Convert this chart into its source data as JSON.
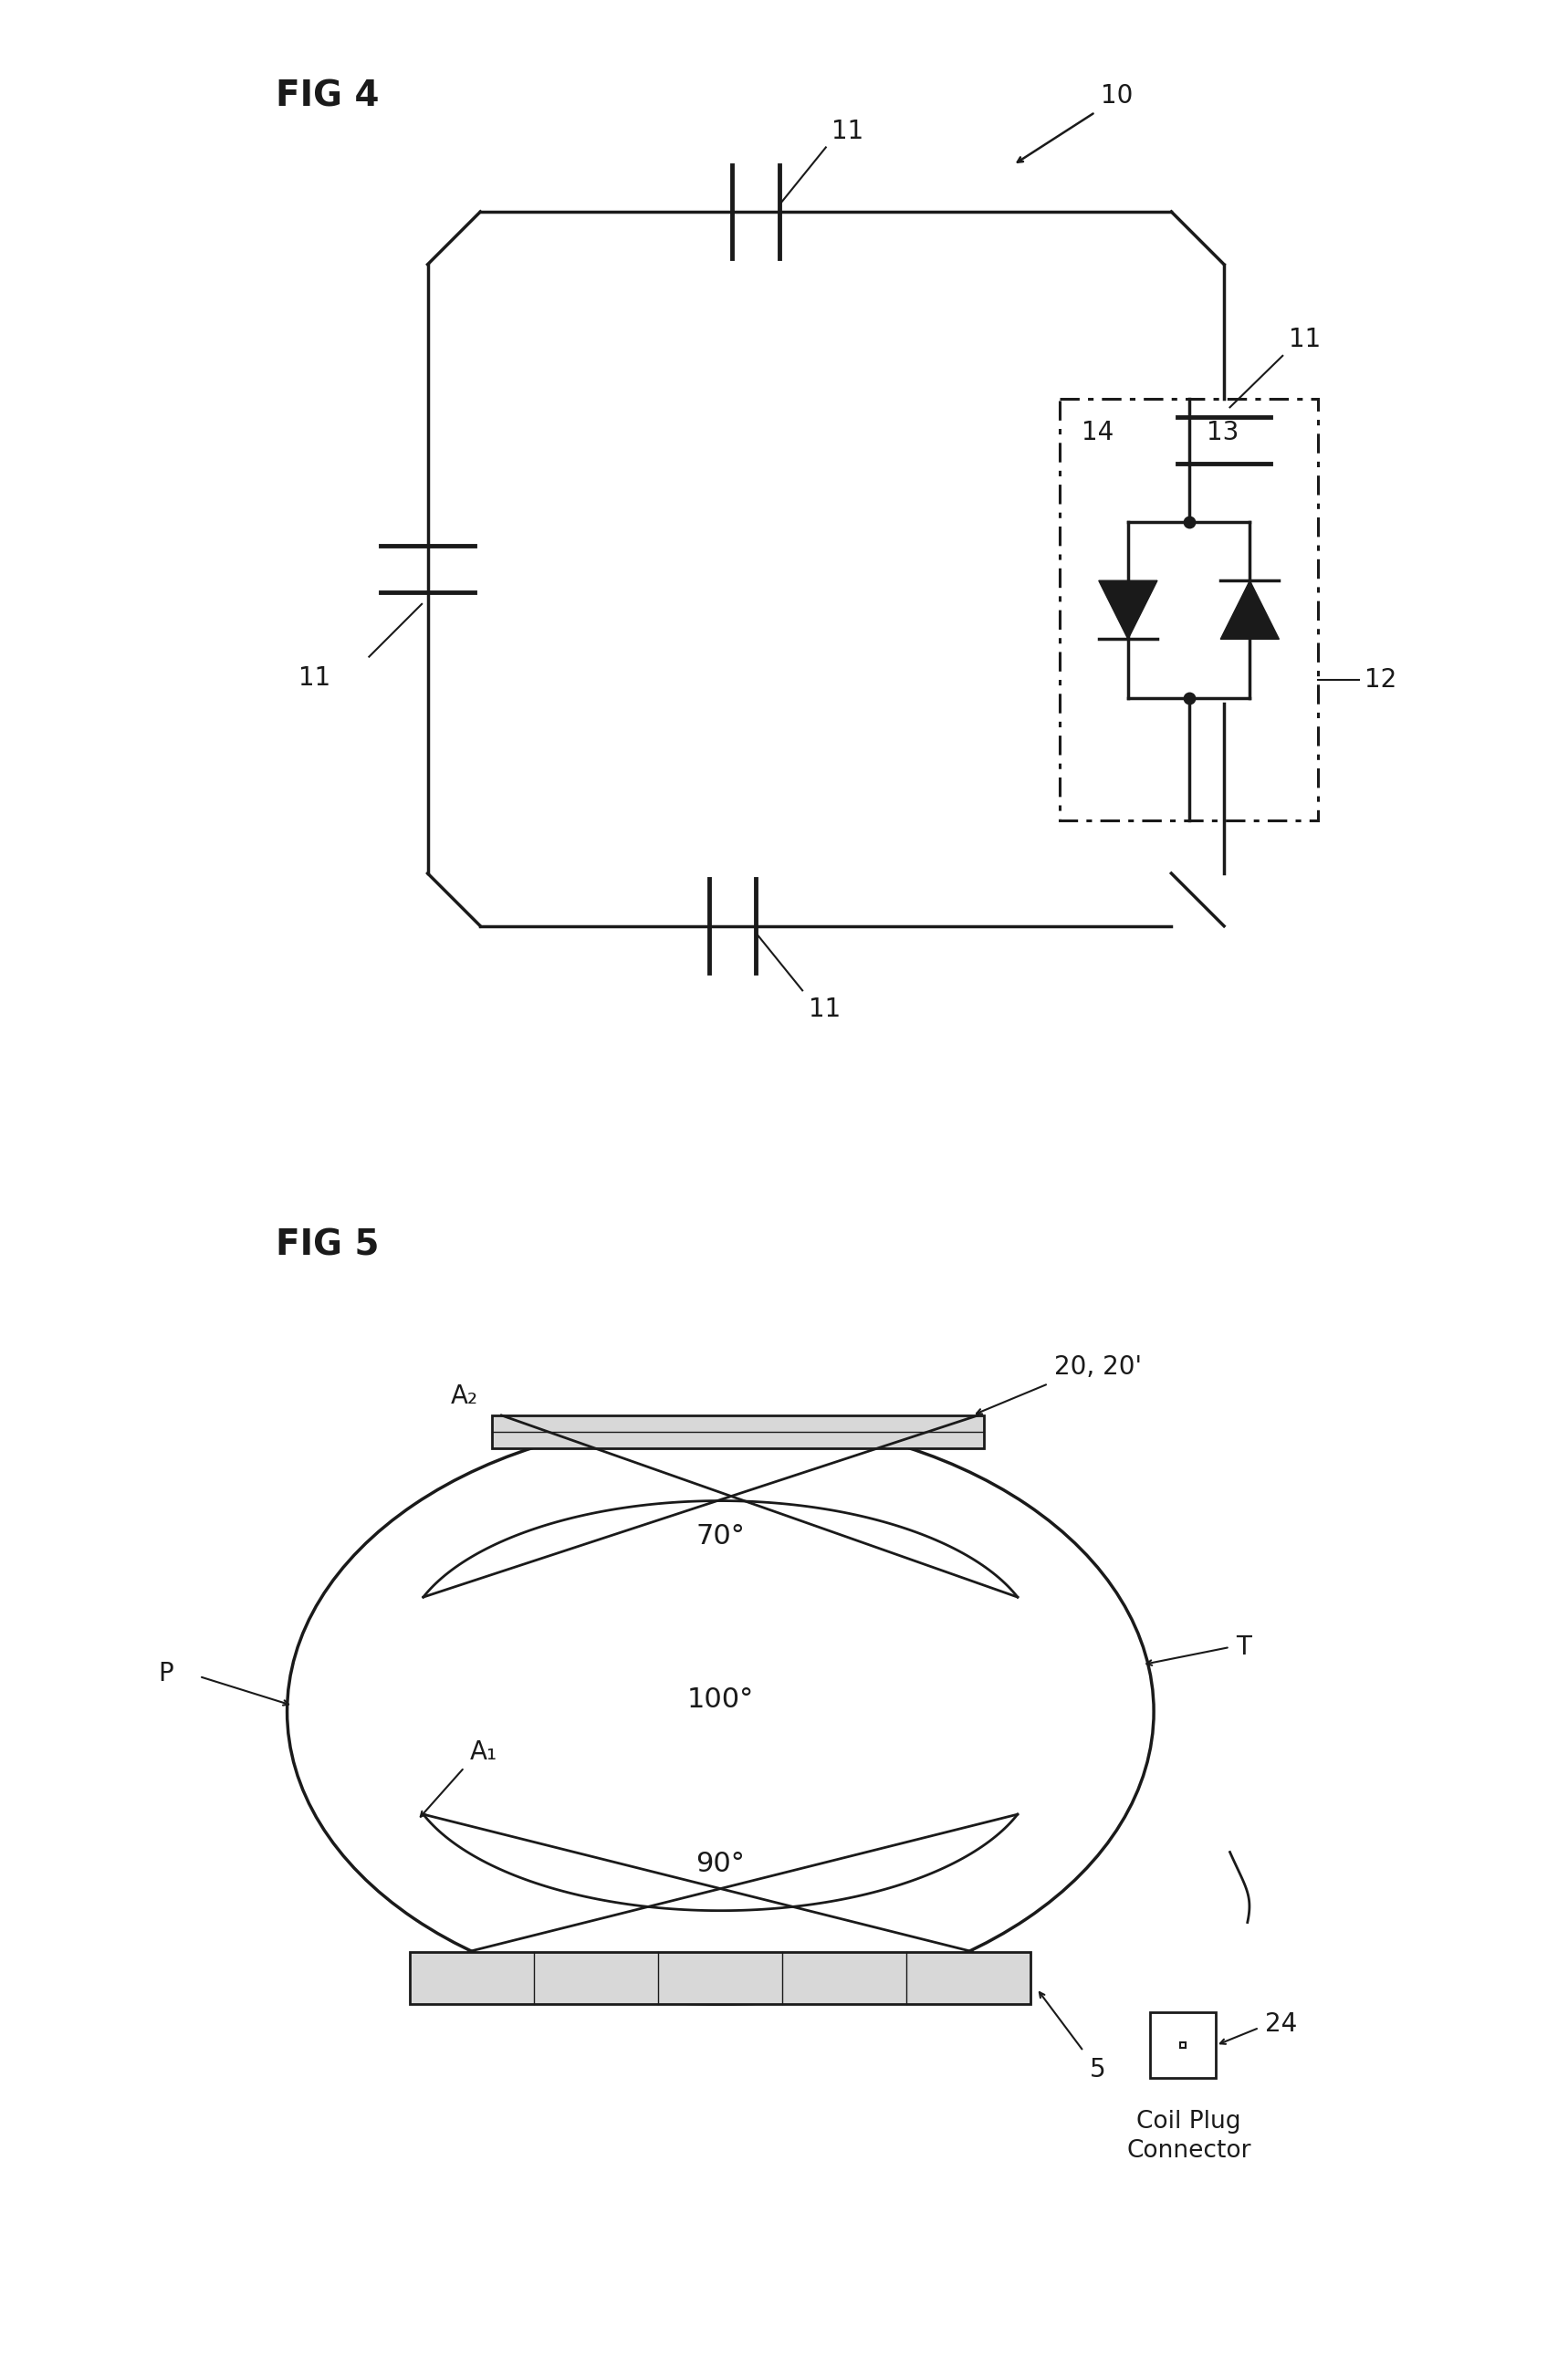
{
  "fig_label1": "FIG 4",
  "fig_label2": "FIG 5",
  "background_color": "#ffffff",
  "line_color": "#1a1a1a",
  "font_size_fig": 28,
  "font_size_label": 20,
  "fig4_label10": "10",
  "fig4_label11": "11",
  "fig4_label12": "12",
  "fig4_label13": "13",
  "fig4_label14": "14",
  "fig5_label5": "5",
  "fig5_label20": "20, 20'",
  "fig5_label24": "24",
  "fig5_labelP": "P",
  "fig5_labelT": "T",
  "fig5_labelA1": "A₁",
  "fig5_labelA2": "A₂",
  "fig5_label70": "70°",
  "fig5_label90": "90°",
  "fig5_label100": "100°",
  "fig5_coil_plug": "Coil Plug\nConnector"
}
